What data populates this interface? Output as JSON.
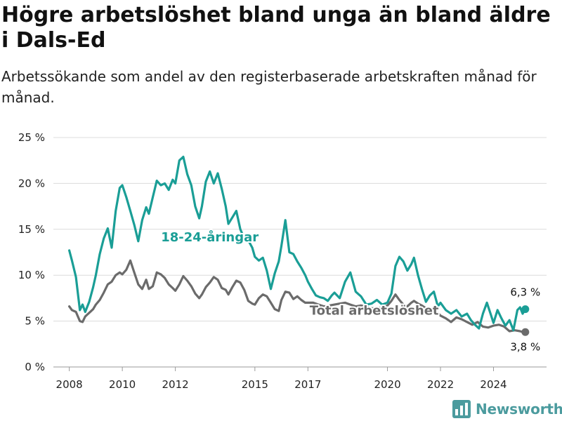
{
  "title": "Högre arbetslöshet bland unga än bland äldre i Dals-Ed",
  "subtitle": "Arbetssökande som andel av den registerbaserade arbetskraften månad för månad.",
  "brand": {
    "name": "Newsworthy",
    "icon": "newsworthy-logo-icon",
    "color": "#4b9b9e"
  },
  "chart_data": {
    "type": "line",
    "xlim": [
      2007.4,
      2026.0
    ],
    "ylim": [
      0,
      25
    ],
    "y_ticks": [
      0,
      5,
      10,
      15,
      20,
      25
    ],
    "y_tick_labels": [
      "0 %",
      "5 %",
      "10 %",
      "15 %",
      "20 %",
      "25 %"
    ],
    "x_ticks": [
      2008,
      2010,
      2012,
      2015,
      2017,
      2020,
      2022,
      2024
    ],
    "x_tick_labels": [
      "2008",
      "2010",
      "2012",
      "2015",
      "2017",
      "2020",
      "2022",
      "2024"
    ],
    "grid": "horizontal",
    "series": [
      {
        "name": "18-24-åringar",
        "color": "#1a9e96",
        "label_position": [
          2013.3,
          13.7
        ],
        "end_label": "6,3 %",
        "x": [
          2008.0,
          2008.1,
          2008.25,
          2008.4,
          2008.5,
          2008.6,
          2008.75,
          2008.9,
          2009.0,
          2009.15,
          2009.3,
          2009.45,
          2009.6,
          2009.75,
          2009.9,
          2010.0,
          2010.15,
          2010.3,
          2010.45,
          2010.6,
          2010.75,
          2010.9,
          2011.0,
          2011.15,
          2011.3,
          2011.45,
          2011.6,
          2011.75,
          2011.9,
          2012.0,
          2012.15,
          2012.3,
          2012.45,
          2012.6,
          2012.75,
          2012.9,
          2013.0,
          2013.15,
          2013.3,
          2013.45,
          2013.6,
          2013.75,
          2013.9,
          2014.0,
          2014.15,
          2014.3,
          2014.45,
          2014.6,
          2014.75,
          2014.9,
          2015.0,
          2015.15,
          2015.3,
          2015.45,
          2015.6,
          2015.75,
          2015.9,
          2016.0,
          2016.15,
          2016.3,
          2016.45,
          2016.6,
          2016.75,
          2016.9,
          2017.0,
          2017.15,
          2017.3,
          2017.45,
          2017.6,
          2017.75,
          2017.9,
          2018.0,
          2018.2,
          2018.4,
          2018.6,
          2018.8,
          2019.0,
          2019.2,
          2019.4,
          2019.6,
          2019.8,
          2020.0,
          2020.15,
          2020.3,
          2020.45,
          2020.6,
          2020.75,
          2020.9,
          2021.0,
          2021.15,
          2021.3,
          2021.45,
          2021.6,
          2021.75,
          2021.9,
          2022.0,
          2022.2,
          2022.4,
          2022.6,
          2022.8,
          2023.0,
          2023.15,
          2023.3,
          2023.45,
          2023.6,
          2023.75,
          2023.9,
          2024.0,
          2024.15,
          2024.3,
          2024.45,
          2024.6,
          2024.75,
          2024.9,
          2025.0,
          2025.1,
          2025.2
        ],
        "values": [
          12.7,
          11.6,
          9.8,
          6.2,
          6.8,
          6.0,
          7.1,
          8.7,
          10.0,
          12.3,
          14.0,
          15.1,
          13.0,
          17.0,
          19.5,
          19.8,
          18.5,
          17.0,
          15.5,
          13.7,
          16.0,
          17.4,
          16.7,
          18.5,
          20.3,
          19.8,
          20.0,
          19.3,
          20.4,
          20.0,
          22.5,
          22.9,
          21.0,
          19.8,
          17.5,
          16.2,
          17.5,
          20.2,
          21.3,
          20.0,
          21.1,
          19.4,
          17.5,
          15.6,
          16.3,
          17.0,
          15.0,
          14.0,
          13.8,
          13.0,
          12.0,
          11.6,
          11.9,
          10.5,
          8.5,
          10.2,
          11.5,
          13.2,
          16.0,
          12.5,
          12.3,
          11.5,
          10.8,
          10.0,
          9.3,
          8.5,
          7.8,
          7.6,
          7.5,
          7.2,
          7.8,
          8.1,
          7.5,
          9.3,
          10.3,
          8.2,
          7.7,
          6.8,
          6.9,
          7.3,
          6.8,
          7.0,
          8.0,
          11.0,
          12.0,
          11.5,
          10.5,
          11.2,
          11.9,
          10.0,
          8.5,
          7.1,
          7.8,
          8.2,
          6.6,
          7.0,
          6.2,
          5.8,
          6.2,
          5.5,
          5.8,
          5.1,
          4.6,
          4.2,
          5.8,
          7.0,
          5.7,
          4.8,
          6.2,
          5.3,
          4.5,
          5.1,
          4.0,
          6.2,
          6.5,
          5.8,
          6.3
        ]
      },
      {
        "name": "Total arbetslöshet",
        "color": "#6b6b6b",
        "label_position": [
          2019.5,
          5.7
        ],
        "end_label": "3,8 %",
        "x": [
          2008.0,
          2008.1,
          2008.25,
          2008.4,
          2008.5,
          2008.6,
          2008.75,
          2008.9,
          2009.0,
          2009.15,
          2009.3,
          2009.45,
          2009.6,
          2009.75,
          2009.9,
          2010.0,
          2010.15,
          2010.3,
          2010.45,
          2010.6,
          2010.75,
          2010.9,
          2011.0,
          2011.15,
          2011.3,
          2011.45,
          2011.6,
          2011.75,
          2011.9,
          2012.0,
          2012.15,
          2012.3,
          2012.45,
          2012.6,
          2012.75,
          2012.9,
          2013.0,
          2013.15,
          2013.3,
          2013.45,
          2013.6,
          2013.75,
          2013.9,
          2014.0,
          2014.15,
          2014.3,
          2014.45,
          2014.6,
          2014.75,
          2014.9,
          2015.0,
          2015.15,
          2015.3,
          2015.45,
          2015.6,
          2015.75,
          2015.9,
          2016.0,
          2016.15,
          2016.3,
          2016.45,
          2016.6,
          2016.75,
          2016.9,
          2017.0,
          2017.2,
          2017.4,
          2017.6,
          2017.8,
          2018.0,
          2018.2,
          2018.4,
          2018.6,
          2018.8,
          2019.0,
          2019.2,
          2019.4,
          2019.6,
          2019.8,
          2020.0,
          2020.15,
          2020.3,
          2020.45,
          2020.6,
          2020.75,
          2020.9,
          2021.0,
          2021.15,
          2021.3,
          2021.45,
          2021.6,
          2021.75,
          2021.9,
          2022.0,
          2022.2,
          2022.4,
          2022.6,
          2022.8,
          2023.0,
          2023.2,
          2023.4,
          2023.6,
          2023.8,
          2024.0,
          2024.2,
          2024.4,
          2024.6,
          2024.8,
          2025.0,
          2025.1,
          2025.2
        ],
        "values": [
          6.6,
          6.2,
          6.0,
          5.0,
          4.9,
          5.5,
          5.9,
          6.3,
          6.8,
          7.3,
          8.1,
          9.0,
          9.3,
          10.0,
          10.3,
          10.1,
          10.6,
          11.6,
          10.3,
          9.0,
          8.5,
          9.5,
          8.5,
          8.8,
          10.3,
          10.1,
          9.7,
          9.0,
          8.6,
          8.3,
          9.0,
          9.9,
          9.4,
          8.8,
          8.0,
          7.5,
          7.9,
          8.7,
          9.2,
          9.8,
          9.5,
          8.6,
          8.4,
          7.9,
          8.7,
          9.4,
          9.2,
          8.4,
          7.2,
          6.9,
          6.8,
          7.5,
          7.9,
          7.7,
          7.0,
          6.3,
          6.1,
          7.3,
          8.2,
          8.1,
          7.4,
          7.7,
          7.3,
          7.0,
          7.0,
          7.0,
          6.8,
          6.6,
          6.7,
          6.8,
          6.9,
          7.0,
          6.8,
          6.6,
          6.7,
          6.6,
          6.4,
          6.4,
          6.5,
          6.7,
          7.2,
          7.9,
          7.3,
          6.8,
          6.6,
          7.0,
          7.2,
          6.9,
          6.7,
          6.4,
          6.2,
          6.0,
          5.9,
          5.6,
          5.3,
          4.9,
          5.4,
          5.2,
          4.9,
          4.6,
          4.9,
          4.4,
          4.3,
          4.5,
          4.6,
          4.4,
          3.9,
          4.0,
          3.9,
          3.8,
          3.8
        ]
      }
    ]
  }
}
